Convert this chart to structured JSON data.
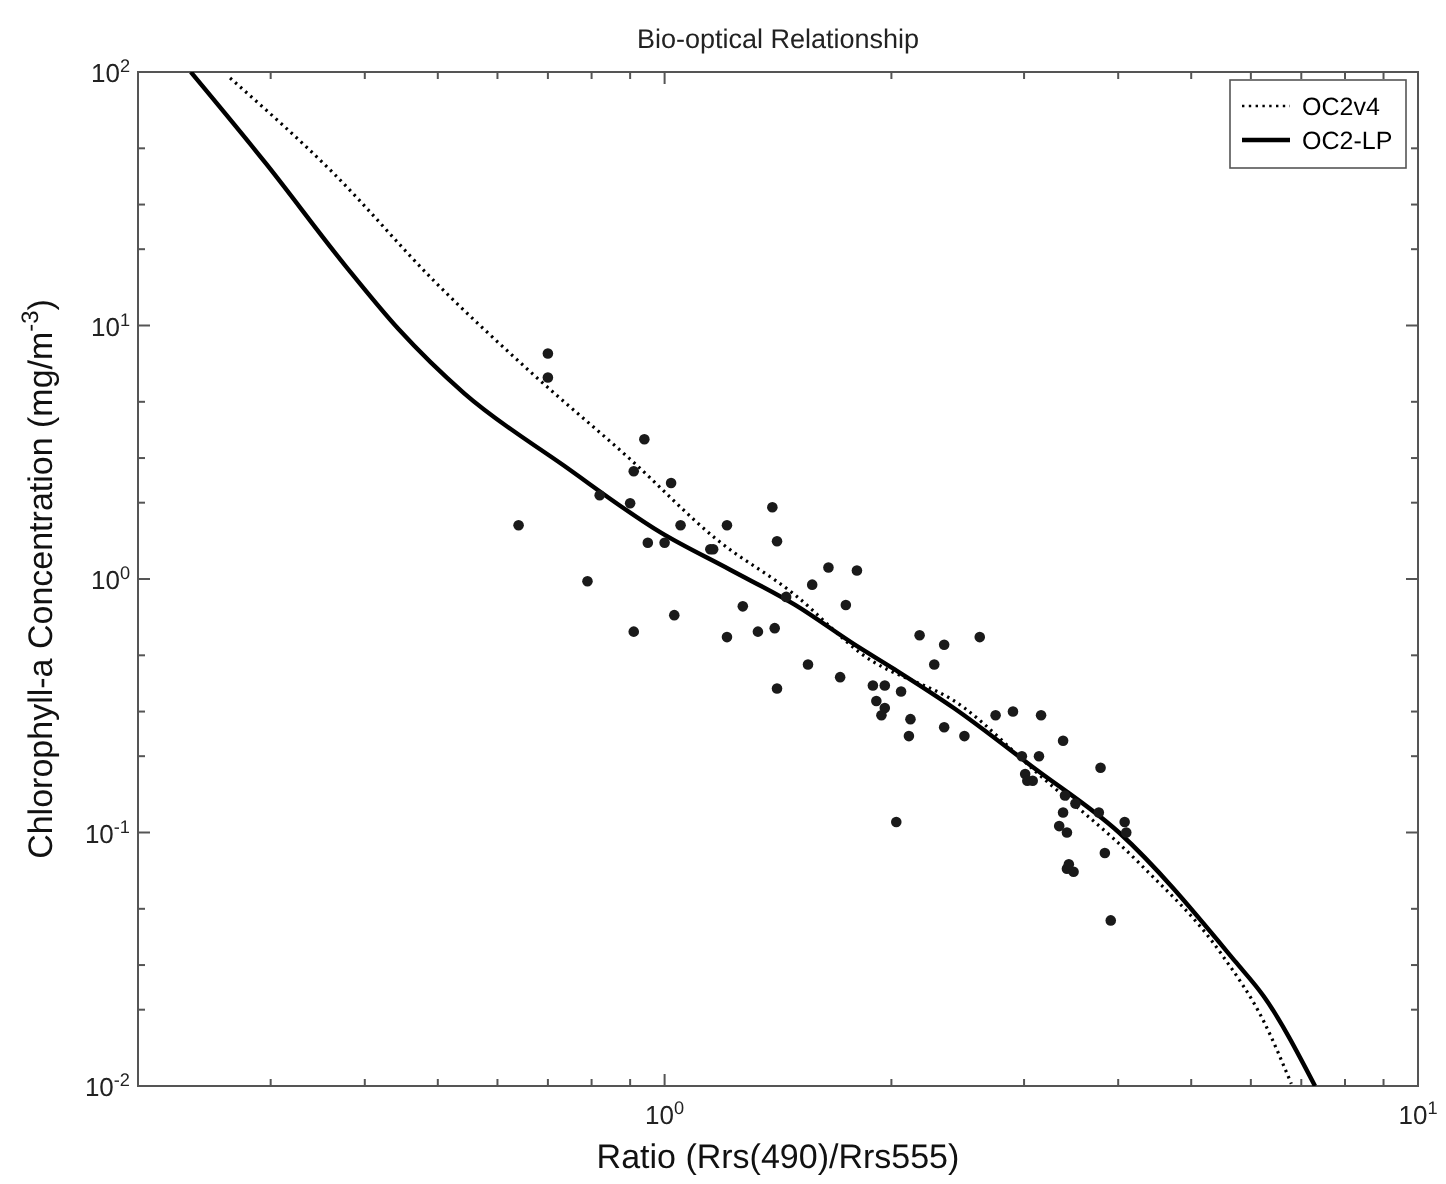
{
  "chart_data": {
    "type": "line",
    "title": "Bio-optical Relationship",
    "xlabel": "Ratio (Rrs(490)/Rrs555)",
    "ylabel": "Chlorophyll-a Concentration (mg/m$^{-3}$)",
    "log": "xy",
    "grid": false,
    "legend": "top right",
    "xlim": [
      0.2,
      10
    ],
    "ylim": [
      0.01,
      100
    ],
    "xticks": [
      {
        "value": 0.3,
        "label": null
      },
      {
        "value": 0.4,
        "label": null
      },
      {
        "value": 0.5,
        "label": null
      },
      {
        "value": 0.6,
        "label": null
      },
      {
        "value": 0.7,
        "label": null
      },
      {
        "value": 0.8,
        "label": null
      },
      {
        "value": 0.9,
        "label": null
      },
      {
        "value": 1,
        "label": "10$^{0}$"
      },
      {
        "value": 2,
        "label": null
      },
      {
        "value": 3,
        "label": null
      },
      {
        "value": 4,
        "label": null
      },
      {
        "value": 5,
        "label": null
      },
      {
        "value": 6,
        "label": null
      },
      {
        "value": 7,
        "label": null
      },
      {
        "value": 8,
        "label": null
      },
      {
        "value": 9,
        "label": null
      },
      {
        "value": 10,
        "label": "10$^{1}$"
      }
    ],
    "yticks": [
      {
        "value": 0.01,
        "label": "10$^{-2}$"
      },
      {
        "value": 0.02,
        "label": null
      },
      {
        "value": 0.03,
        "label": null
      },
      {
        "value": 0.05,
        "label": null
      },
      {
        "value": 0.1,
        "label": "10$^{-1}$"
      },
      {
        "value": 0.2,
        "label": null
      },
      {
        "value": 0.3,
        "label": null
      },
      {
        "value": 0.5,
        "label": null
      },
      {
        "value": 1,
        "label": "10$^{0}$"
      },
      {
        "value": 2,
        "label": null
      },
      {
        "value": 3,
        "label": null
      },
      {
        "value": 5,
        "label": null
      },
      {
        "value": 10,
        "label": "10$^{1}$"
      },
      {
        "value": 20,
        "label": null
      },
      {
        "value": 30,
        "label": null
      },
      {
        "value": 50,
        "label": null
      },
      {
        "value": 100,
        "label": "10$^{2}$"
      }
    ],
    "series": [
      {
        "name": "OC2v4",
        "line_style": "dotted",
        "color": "#000000",
        "x": [
          0.265,
          0.364,
          0.492,
          0.667,
          0.9,
          1.17,
          1.49,
          1.82,
          2.5,
          3.1,
          4.26,
          5.49,
          6.24,
          6.79
        ],
        "values": [
          94.7,
          39.7,
          15.2,
          6.47,
          2.97,
          1.44,
          0.865,
          0.51,
          0.31,
          0.175,
          0.076,
          0.033,
          0.018,
          0.0102
        ]
      },
      {
        "name": "OC2-LP",
        "line_style": "solid",
        "color": "#000000",
        "x": [
          0.235,
          0.296,
          0.377,
          0.444,
          0.542,
          0.734,
          0.99,
          1.22,
          1.49,
          1.79,
          2.02,
          2.42,
          3.09,
          4.01,
          5.72,
          6.24,
          7.3
        ],
        "values": [
          100,
          43.4,
          17.2,
          9.64,
          5.4,
          2.81,
          1.52,
          1.09,
          0.79,
          0.55,
          0.44,
          0.31,
          0.18,
          0.1,
          0.031,
          0.0226,
          0.01
        ]
      },
      {
        "type": "scatter",
        "marker": "circle",
        "color": "#1a1a1a",
        "x": [
          0.7,
          0.7,
          0.94,
          0.91,
          1.02,
          0.82,
          0.9,
          0.64,
          1.05,
          0.95,
          1.0,
          1.15,
          0.79,
          1.21,
          1.39,
          1.41,
          1.16,
          1.45,
          1.57,
          1.65,
          1.8,
          1.74,
          1.27,
          1.03,
          0.91,
          1.21,
          1.33,
          1.4,
          1.55,
          1.71,
          1.41,
          1.89,
          1.96,
          1.91,
          1.96,
          1.94,
          2.18,
          2.35,
          2.62,
          2.28,
          2.06,
          2.12,
          2.11,
          2.35,
          2.5,
          2.75,
          2.9,
          3.16,
          3.38,
          3.14,
          2.98,
          3.01,
          3.08,
          3.03,
          3.4,
          3.51,
          3.38,
          3.79,
          3.77,
          4.08,
          4.1,
          3.34,
          3.42,
          3.84,
          3.42,
          3.49,
          3.44,
          2.03,
          3.91
        ],
        "values": [
          7.76,
          6.24,
          3.56,
          2.66,
          2.39,
          2.14,
          1.99,
          1.63,
          1.63,
          1.39,
          1.39,
          1.31,
          0.98,
          1.63,
          1.92,
          1.41,
          1.31,
          0.85,
          0.95,
          1.11,
          1.08,
          0.79,
          0.78,
          0.72,
          0.62,
          0.59,
          0.62,
          0.64,
          0.46,
          0.41,
          0.37,
          0.38,
          0.38,
          0.33,
          0.31,
          0.29,
          0.6,
          0.55,
          0.59,
          0.46,
          0.36,
          0.28,
          0.24,
          0.26,
          0.24,
          0.29,
          0.3,
          0.29,
          0.23,
          0.2,
          0.2,
          0.17,
          0.16,
          0.16,
          0.14,
          0.13,
          0.12,
          0.18,
          0.12,
          0.11,
          0.1,
          0.106,
          0.1,
          0.083,
          0.072,
          0.07,
          0.075,
          0.11,
          0.045
        ]
      }
    ]
  }
}
